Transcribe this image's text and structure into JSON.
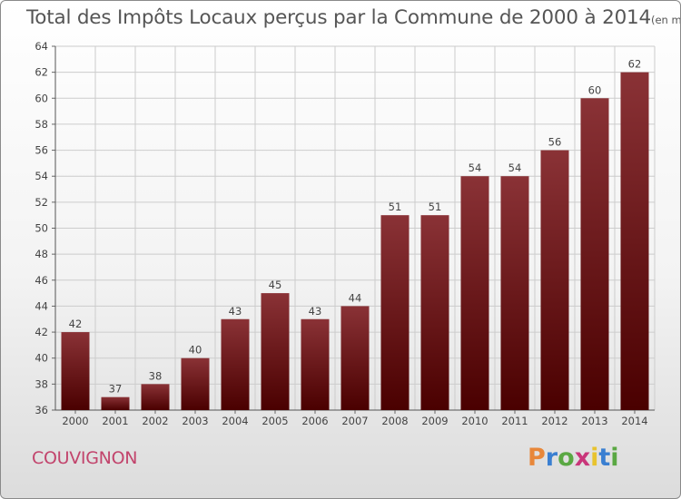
{
  "title": "Total des Impôts Locaux perçus par la Commune de 2000 à 2014",
  "unit": "(en milliers d'€)",
  "commune": "COUVIGNON",
  "logo": {
    "letters": [
      "P",
      "r",
      "o",
      "x",
      "i",
      "t",
      "i"
    ],
    "colors": [
      "#e8873a",
      "#3a7fd1",
      "#5aa843",
      "#c9367a",
      "#e8c32e",
      "#3a7fd1",
      "#5aa843"
    ]
  },
  "colors": {
    "bar_top": "#8a3236",
    "bar_bottom": "#4a0000",
    "grid": "#cccccc"
  },
  "chart_data": {
    "type": "bar",
    "title": "Total des Impôts Locaux perçus par la Commune de 2000 à 2014",
    "xlabel": "",
    "ylabel": "",
    "ylim": [
      36,
      64
    ],
    "yticks": [
      36,
      38,
      40,
      42,
      44,
      46,
      48,
      50,
      52,
      54,
      56,
      58,
      60,
      62,
      64
    ],
    "grid": true,
    "categories": [
      "2000",
      "2001",
      "2002",
      "2003",
      "2004",
      "2005",
      "2006",
      "2007",
      "2008",
      "2009",
      "2010",
      "2011",
      "2012",
      "2013",
      "2014"
    ],
    "values": [
      42,
      37,
      38,
      40,
      43,
      45,
      43,
      44,
      51,
      51,
      54,
      54,
      56,
      60,
      62
    ]
  }
}
